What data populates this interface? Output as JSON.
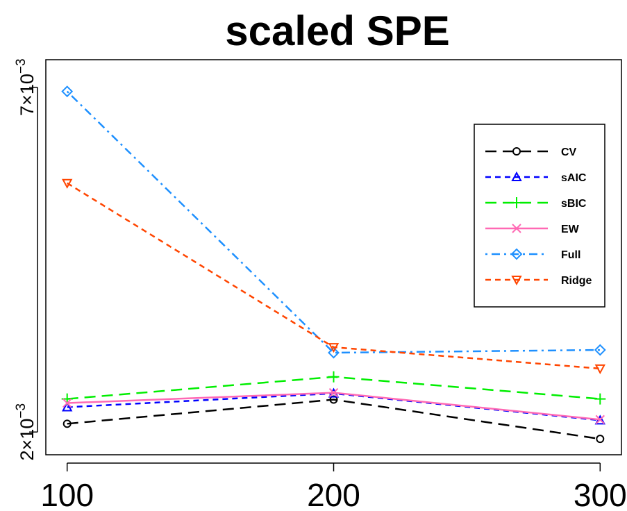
{
  "chart_data": {
    "type": "line",
    "title": "scaled SPE",
    "xlabel": "",
    "ylabel": "",
    "x": [
      100,
      200,
      300
    ],
    "xticks": [
      {
        "value": 100,
        "label": "100"
      },
      {
        "value": 200,
        "label": "200"
      },
      {
        "value": 300,
        "label": "300"
      }
    ],
    "yticks": [
      {
        "value": 0.002,
        "mantissa": "2",
        "times": "×",
        "base": "10",
        "exp": "−3"
      },
      {
        "value": 0.007,
        "mantissa": "7",
        "times": "×",
        "base": "10",
        "exp": "−3"
      }
    ],
    "ylim": [
      0.00167,
      0.0074
    ],
    "xlim": [
      92,
      308
    ],
    "grid": false,
    "legend_position": "top-right",
    "series": [
      {
        "name": "CV",
        "color": "#000000",
        "dash": "long-dash",
        "marker": "circle",
        "values": [
          0.00212,
          0.00247,
          0.0019
        ]
      },
      {
        "name": "sAIC",
        "color": "#0000ff",
        "dash": "short-dash",
        "marker": "triangle-up",
        "values": [
          0.00236,
          0.00256,
          0.00217
        ]
      },
      {
        "name": "sBIC",
        "color": "#00ee00",
        "dash": "long-dash",
        "marker": "plus",
        "values": [
          0.00248,
          0.0028,
          0.00248
        ]
      },
      {
        "name": "EW",
        "color": "#ff69b4",
        "dash": "solid",
        "marker": "cross",
        "values": [
          0.00242,
          0.00257,
          0.00218
        ]
      },
      {
        "name": "Full",
        "color": "#1e90ff",
        "dash": "dot-dash",
        "marker": "diamond",
        "values": [
          0.00694,
          0.00315,
          0.00319
        ]
      },
      {
        "name": "Ridge",
        "color": "#ff4500",
        "dash": "short-dash",
        "marker": "triangle-down",
        "values": [
          0.00561,
          0.00323,
          0.00292
        ]
      }
    ]
  }
}
